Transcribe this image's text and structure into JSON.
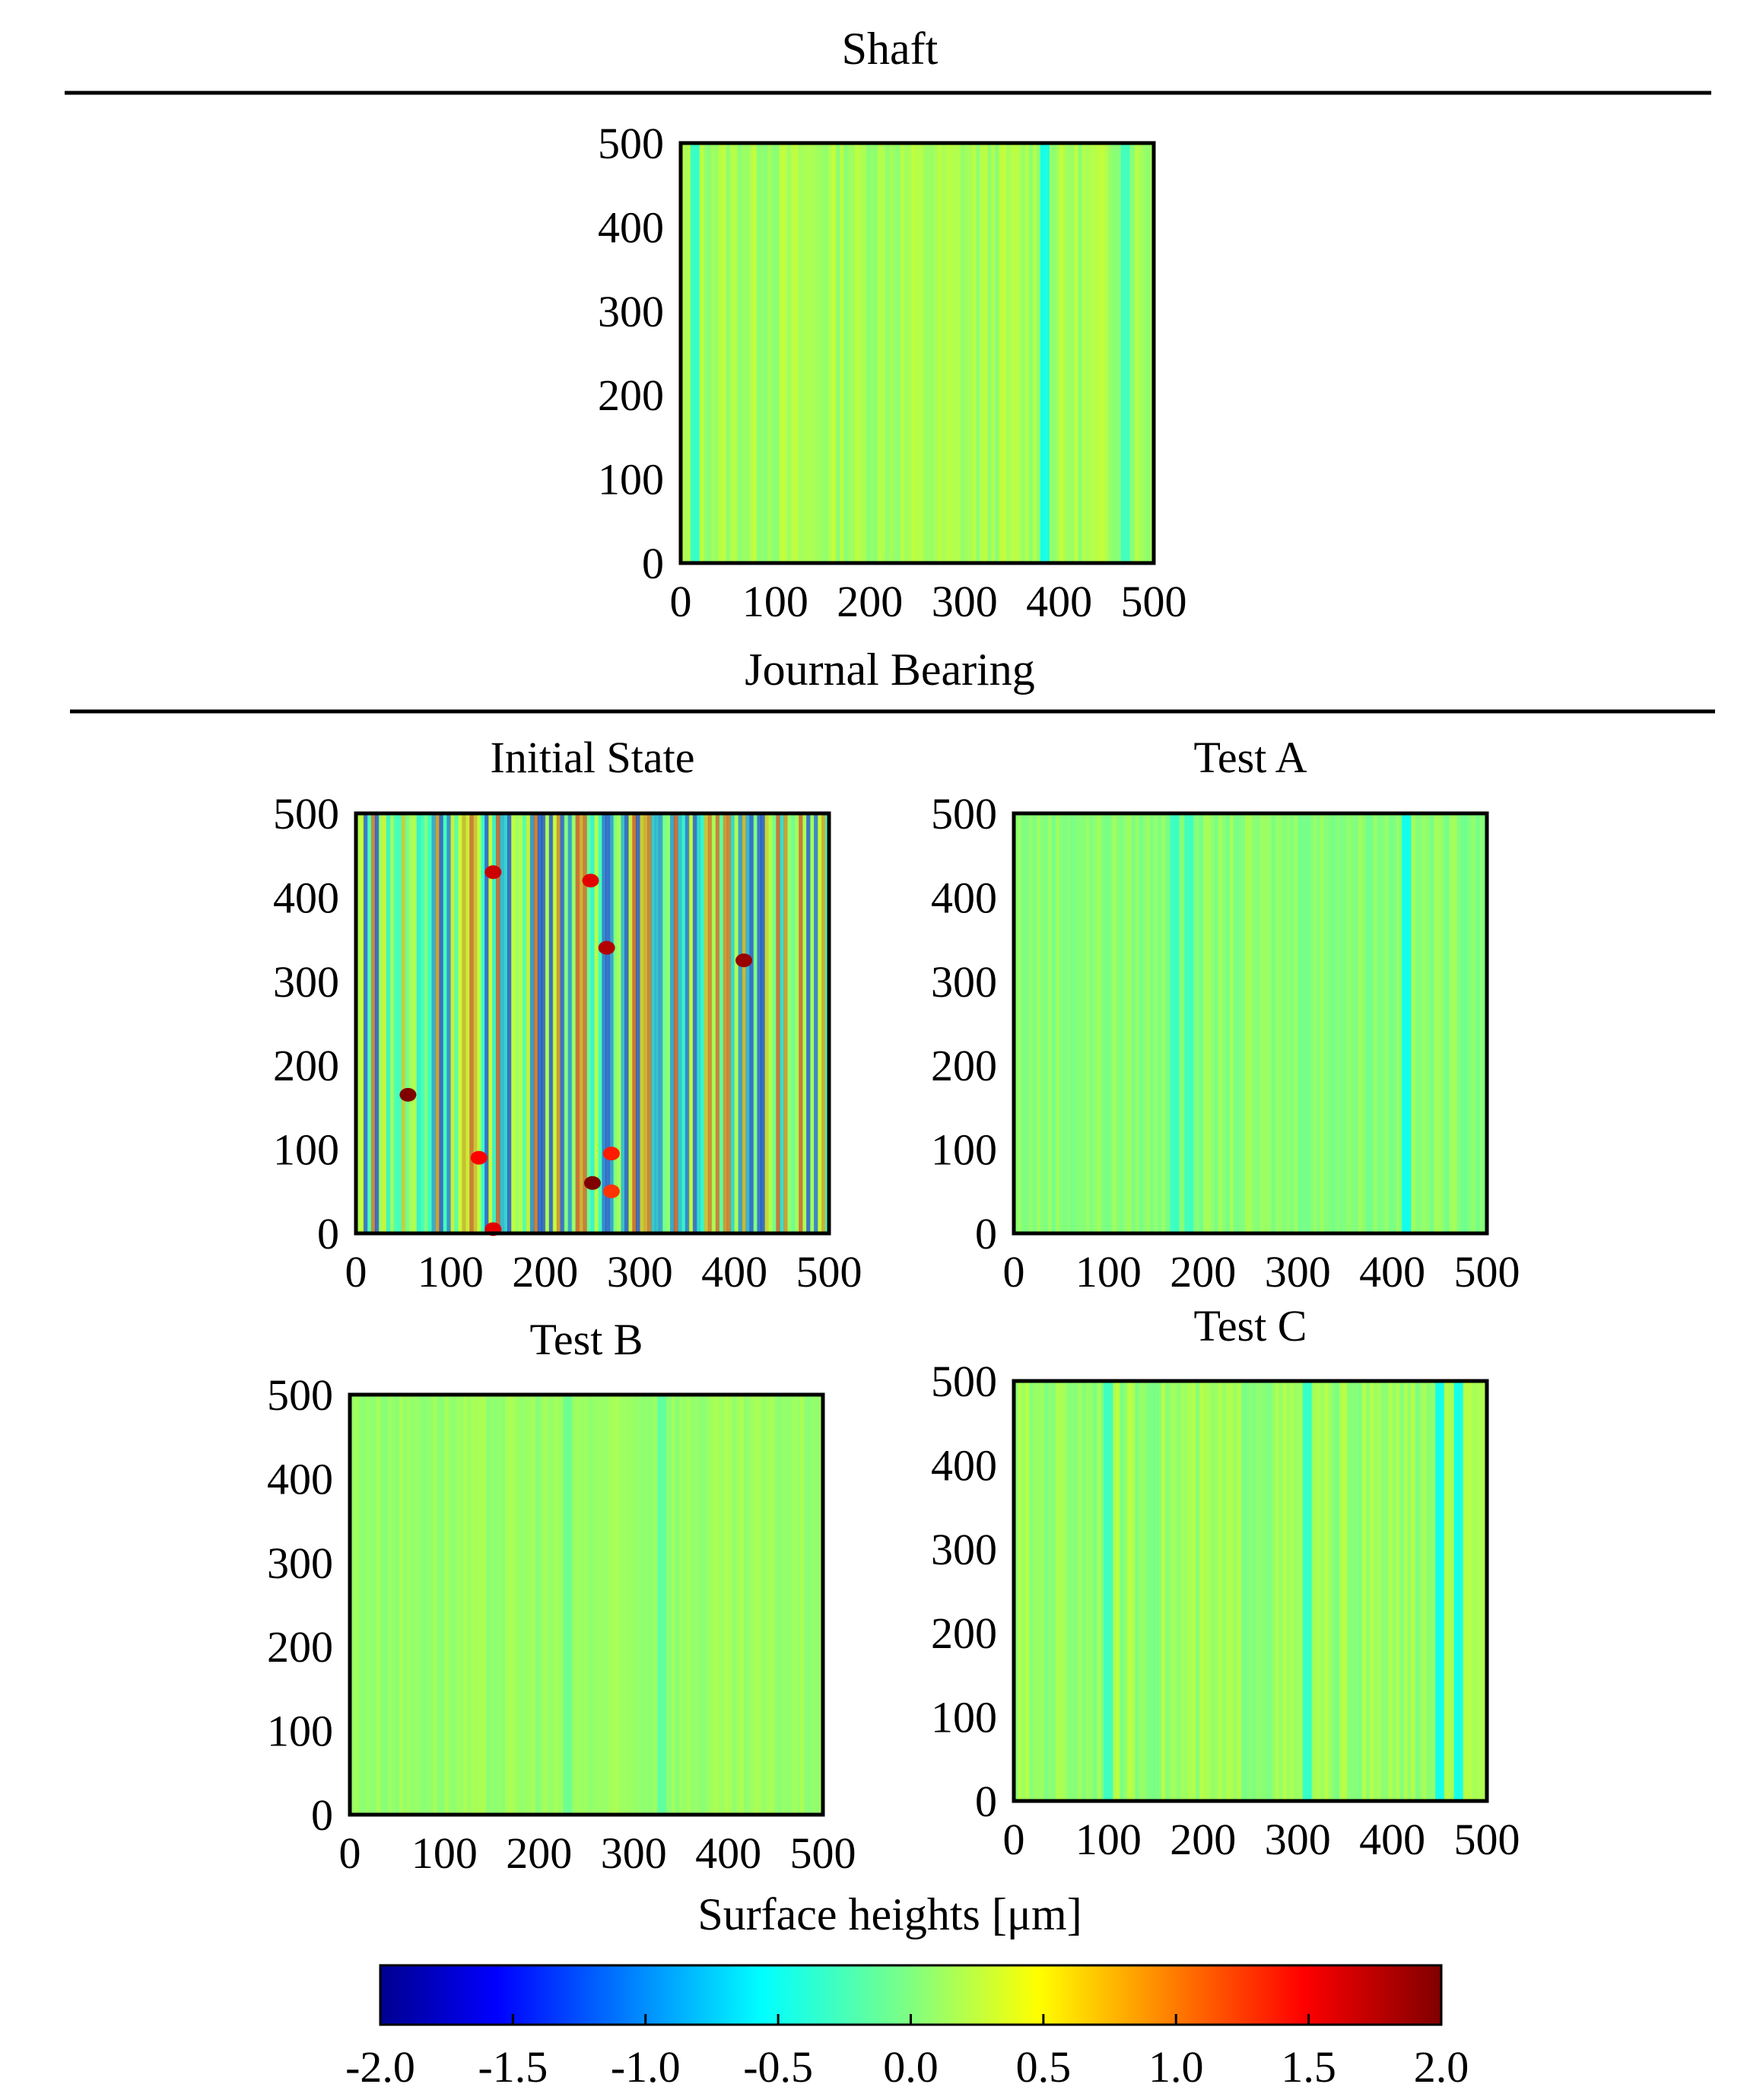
{
  "sections": {
    "shaft_title": "Shaft",
    "bearing_title": "Journal Bearing"
  },
  "chart_data": [
    {
      "type": "heatmap",
      "title": "Shaft",
      "xlim": [
        0,
        500
      ],
      "ylim": [
        0,
        500
      ],
      "x_ticks": [
        "0",
        "100",
        "200",
        "300",
        "400",
        "500"
      ],
      "y_ticks": [
        "0",
        "100",
        "200",
        "300",
        "400",
        "500"
      ],
      "value_mean": 0.15,
      "value_range": [
        -0.5,
        0.5
      ],
      "dominant_streaks": [
        {
          "x": 385,
          "value": -0.5
        },
        {
          "x": 15,
          "value": -0.35
        },
        {
          "x": 470,
          "value": -0.3
        }
      ]
    },
    {
      "type": "heatmap",
      "title": "Initial State",
      "xlim": [
        0,
        500
      ],
      "ylim": [
        0,
        500
      ],
      "x_ticks": [
        "0",
        "100",
        "200",
        "300",
        "400",
        "500"
      ],
      "y_ticks": [
        "0",
        "100",
        "200",
        "300",
        "400",
        "500"
      ],
      "value_mean": 0.0,
      "value_range": [
        -2.0,
        2.0
      ],
      "hot_spots": [
        {
          "x": 55,
          "y": 165,
          "value": 2.0
        },
        {
          "x": 145,
          "y": 430,
          "value": 1.7
        },
        {
          "x": 250,
          "y": 60,
          "value": 2.0
        },
        {
          "x": 265,
          "y": 340,
          "value": 1.8
        },
        {
          "x": 410,
          "y": 325,
          "value": 1.9
        },
        {
          "x": 248,
          "y": 420,
          "value": 1.6
        },
        {
          "x": 130,
          "y": 90,
          "value": 1.5
        },
        {
          "x": 270,
          "y": 95,
          "value": 1.4
        },
        {
          "x": 145,
          "y": 5,
          "value": 1.6
        },
        {
          "x": 270,
          "y": 50,
          "value": 1.3
        }
      ]
    },
    {
      "type": "heatmap",
      "title": "Test A",
      "xlim": [
        0,
        500
      ],
      "ylim": [
        0,
        500
      ],
      "x_ticks": [
        "0",
        "100",
        "200",
        "300",
        "400",
        "500"
      ],
      "y_ticks": [
        "0",
        "100",
        "200",
        "300",
        "400",
        "500"
      ],
      "value_mean": 0.05,
      "value_range": [
        -0.5,
        0.3
      ],
      "dominant_streaks": [
        {
          "x": 415,
          "value": -0.5
        },
        {
          "x": 170,
          "value": -0.3
        },
        {
          "x": 185,
          "value": -0.3
        }
      ]
    },
    {
      "type": "heatmap",
      "title": "Test B",
      "xlim": [
        0,
        500
      ],
      "ylim": [
        0,
        500
      ],
      "x_ticks": [
        "0",
        "100",
        "200",
        "300",
        "400",
        "500"
      ],
      "y_ticks": [
        "0",
        "100",
        "200",
        "300",
        "400",
        "500"
      ],
      "value_mean": 0.1,
      "value_range": [
        -0.3,
        0.3
      ],
      "dominant_streaks": [
        {
          "x": 330,
          "value": -0.15
        },
        {
          "x": 230,
          "value": -0.1
        }
      ]
    },
    {
      "type": "heatmap",
      "title": "Test C",
      "xlim": [
        0,
        500
      ],
      "ylim": [
        0,
        500
      ],
      "x_ticks": [
        "0",
        "100",
        "200",
        "300",
        "400",
        "500"
      ],
      "y_ticks": [
        "0",
        "100",
        "200",
        "300",
        "400",
        "500"
      ],
      "value_mean": 0.1,
      "value_range": [
        -0.5,
        0.5
      ],
      "dominant_streaks": [
        {
          "x": 450,
          "value": -0.5
        },
        {
          "x": 470,
          "value": -0.5
        },
        {
          "x": 310,
          "value": -0.35
        },
        {
          "x": 100,
          "value": -0.3
        }
      ]
    }
  ],
  "colorbar": {
    "label": "Surface heights [μm]",
    "range": [
      -2.0,
      2.0
    ],
    "ticks": [
      "-2.0",
      "-1.5",
      "-1.0",
      "-0.5",
      "0.0",
      "0.5",
      "1.0",
      "1.5",
      "2.0"
    ],
    "colormap": "jet"
  }
}
